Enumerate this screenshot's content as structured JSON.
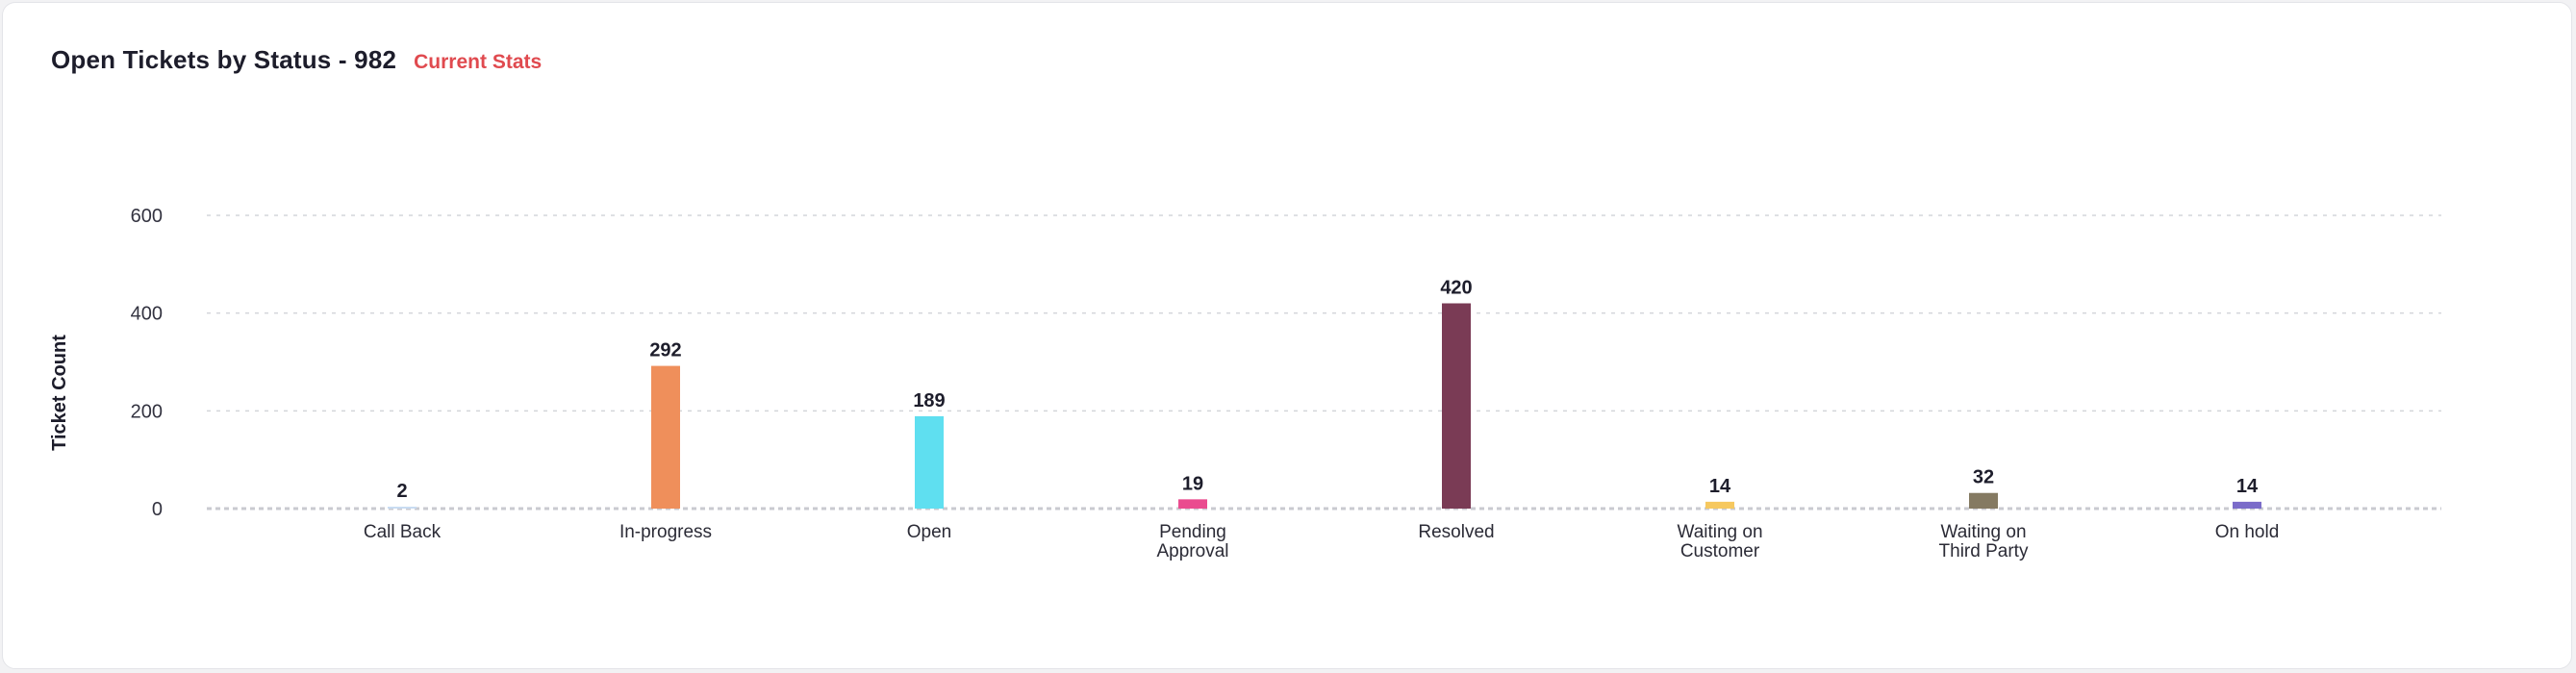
{
  "header": {
    "title": "Open Tickets by Status - 982",
    "subtitle": "Current Stats"
  },
  "colors": {
    "grid": "#d4d5da",
    "axis": "#c9cad0"
  },
  "chart_data": {
    "type": "bar",
    "ylabel": "Ticket Count",
    "xlabel": "",
    "ylim": [
      0,
      600
    ],
    "yticks": [
      0,
      200,
      400,
      600
    ],
    "grid": true,
    "categories": [
      [
        "Call Back"
      ],
      [
        "In-progress"
      ],
      [
        "Open"
      ],
      [
        "Pending",
        "Approval"
      ],
      [
        "Resolved"
      ],
      [
        "Waiting on",
        "Customer"
      ],
      [
        "Waiting on",
        "Third Party"
      ],
      [
        "On hold"
      ]
    ],
    "values": [
      2,
      292,
      189,
      19,
      420,
      14,
      32,
      14
    ],
    "bar_colors": [
      "#c9dcf2",
      "#ef8f5b",
      "#5fdff0",
      "#ea4c8f",
      "#7a3b55",
      "#f6c85f",
      "#857a62",
      "#7b6cc9"
    ]
  }
}
